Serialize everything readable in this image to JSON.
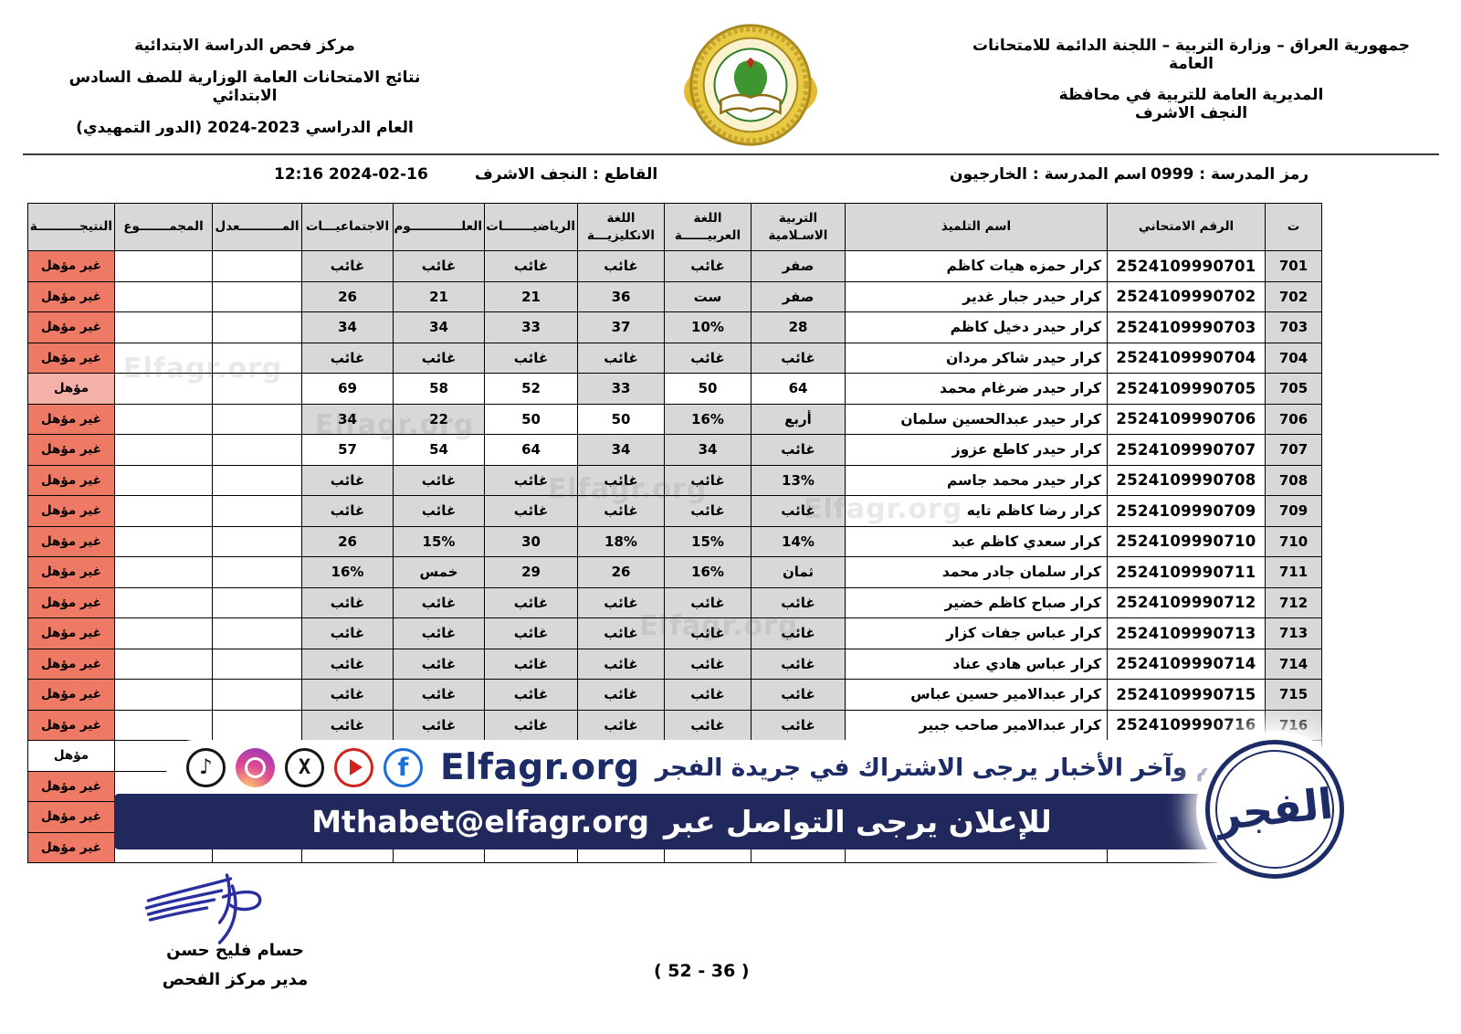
{
  "header": {
    "right": [
      "جمهورية العراق – وزارة التربية – اللجنة الدائمة للامتحانات العامة",
      "المديرية العامة للتربية في محافظة",
      "النجف الاشرف"
    ],
    "left": [
      "مركز فحص الدراسة الابتدائية",
      "نتائج الامتحانات العامة الوزارية للصف السادس الابتدائي",
      "العام الدراسي  2023-2024 (الدور التمهيدي)"
    ],
    "emblem": "ministry-of-education-iraq-emblem"
  },
  "info_bar": {
    "school_code": "رمز المدرسة : 0999",
    "school_name": "اسم المدرسة : الخارجيون",
    "sector": "القاطع : النجف الاشرف",
    "datetime": "12:16 2024-02-16"
  },
  "table": {
    "columns": [
      "ت",
      "الرقم الامتحاني",
      "اسم التلميذ",
      "التربية الاسـلامية",
      "اللغة العربيــــــة",
      "اللغة الانكليزيـــة",
      "الرياضيـــــــات",
      "العلــــــــــــوم",
      "الاجتماعيـــات",
      "المــــــــــعدل",
      "المجمـــــــوع",
      "النتيجــــــــــة"
    ],
    "rows": [
      {
        "no": "701",
        "exam_no": "2524109990701",
        "name": "كرار حمزه هيات كاظم",
        "islamic": "صفر",
        "arabic": "غائب",
        "english": "غائب",
        "math": "غائب",
        "science": "غائب",
        "social": "غائب",
        "average": "",
        "total": "",
        "result": "غير مؤهل",
        "result_style": "fail"
      },
      {
        "no": "702",
        "exam_no": "2524109990702",
        "name": "كرار حيدر جبار غدير",
        "islamic": "صفر",
        "arabic": "ست",
        "english": "36",
        "math": "21",
        "science": "21",
        "social": "26",
        "average": "",
        "total": "",
        "result": "غير مؤهل",
        "result_style": "fail"
      },
      {
        "no": "703",
        "exam_no": "2524109990703",
        "name": "كرار حيدر دخيل كاظم",
        "islamic": "28",
        "arabic": "10%",
        "english": "37",
        "math": "33",
        "science": "34",
        "social": "34",
        "average": "",
        "total": "",
        "result": "غير مؤهل",
        "result_style": "fail"
      },
      {
        "no": "704",
        "exam_no": "2524109990704",
        "name": "كرار حيدر شاكر مردان",
        "islamic": "غائب",
        "arabic": "غائب",
        "english": "غائب",
        "math": "غائب",
        "science": "غائب",
        "social": "غائب",
        "average": "",
        "total": "",
        "result": "غير مؤهل",
        "result_style": "fail"
      },
      {
        "no": "705",
        "exam_no": "2524109990705",
        "name": "كرار حيدر ضرغام محمد",
        "islamic": "64",
        "arabic": "50",
        "english": "33",
        "math": "52",
        "science": "58",
        "social": "69",
        "average": "",
        "total": "",
        "result": "مؤهل",
        "result_style": "pass-light"
      },
      {
        "no": "706",
        "exam_no": "2524109990706",
        "name": "كرار حيدر عبدالحسين سلمان",
        "islamic": "أربع",
        "arabic": "16%",
        "english": "50",
        "math": "50",
        "science": "22",
        "social": "34",
        "average": "",
        "total": "",
        "result": "غير مؤهل",
        "result_style": "fail"
      },
      {
        "no": "707",
        "exam_no": "2524109990707",
        "name": "كرار حيدر كاطع عزوز",
        "islamic": "غائب",
        "arabic": "34",
        "english": "34",
        "math": "64",
        "science": "54",
        "social": "57",
        "average": "",
        "total": "",
        "result": "غير مؤهل",
        "result_style": "fail"
      },
      {
        "no": "708",
        "exam_no": "2524109990708",
        "name": "كرار حيدر محمد جاسم",
        "islamic": "13%",
        "arabic": "غائب",
        "english": "غائب",
        "math": "غائب",
        "science": "غائب",
        "social": "غائب",
        "average": "",
        "total": "",
        "result": "غير مؤهل",
        "result_style": "fail"
      },
      {
        "no": "709",
        "exam_no": "2524109990709",
        "name": "كرار رضا كاظم تايه",
        "islamic": "غائب",
        "arabic": "غائب",
        "english": "غائب",
        "math": "غائب",
        "science": "غائب",
        "social": "غائب",
        "average": "",
        "total": "",
        "result": "غير مؤهل",
        "result_style": "fail"
      },
      {
        "no": "710",
        "exam_no": "2524109990710",
        "name": "كرار سعدي كاظم عبد",
        "islamic": "14%",
        "arabic": "15%",
        "english": "18%",
        "math": "30",
        "science": "15%",
        "social": "26",
        "average": "",
        "total": "",
        "result": "غير مؤهل",
        "result_style": "fail"
      },
      {
        "no": "711",
        "exam_no": "2524109990711",
        "name": "كرار سلمان جادر محمد",
        "islamic": "ثمان",
        "arabic": "16%",
        "english": "26",
        "math": "29",
        "science": "خمس",
        "social": "16%",
        "average": "",
        "total": "",
        "result": "غير مؤهل",
        "result_style": "fail"
      },
      {
        "no": "712",
        "exam_no": "2524109990712",
        "name": "كرار صباح كاظم خضير",
        "islamic": "غائب",
        "arabic": "غائب",
        "english": "غائب",
        "math": "غائب",
        "science": "غائب",
        "social": "غائب",
        "average": "",
        "total": "",
        "result": "غير مؤهل",
        "result_style": "fail"
      },
      {
        "no": "713",
        "exam_no": "2524109990713",
        "name": "كرار عباس جفات كزار",
        "islamic": "غائب",
        "arabic": "غائب",
        "english": "غائب",
        "math": "غائب",
        "science": "غائب",
        "social": "غائب",
        "average": "",
        "total": "",
        "result": "غير مؤهل",
        "result_style": "fail"
      },
      {
        "no": "714",
        "exam_no": "2524109990714",
        "name": "كرار عباس هادي عناد",
        "islamic": "غائب",
        "arabic": "غائب",
        "english": "غائب",
        "math": "غائب",
        "science": "غائب",
        "social": "غائب",
        "average": "",
        "total": "",
        "result": "غير مؤهل",
        "result_style": "fail"
      },
      {
        "no": "715",
        "exam_no": "2524109990715",
        "name": "كرار عبدالامير حسين عباس",
        "islamic": "غائب",
        "arabic": "غائب",
        "english": "غائب",
        "math": "غائب",
        "science": "غائب",
        "social": "غائب",
        "average": "",
        "total": "",
        "result": "غير مؤهل",
        "result_style": "fail"
      },
      {
        "no": "716",
        "exam_no": "2524109990716",
        "name": "كرار عبدالامير صاحب جبير",
        "islamic": "غائب",
        "arabic": "غائب",
        "english": "غائب",
        "math": "غائب",
        "science": "غائب",
        "social": "غائب",
        "average": "",
        "total": "",
        "result": "غير مؤهل",
        "result_style": "fail"
      },
      {
        "no": "",
        "exam_no": "",
        "name": "",
        "islamic": "",
        "arabic": "",
        "english": "",
        "math": "",
        "science": "",
        "social": "",
        "average": "",
        "total": "",
        "result": "مؤهل",
        "result_style": "pass-plain"
      },
      {
        "no": "",
        "exam_no": "",
        "name": "",
        "islamic": "",
        "arabic": "",
        "english": "",
        "math": "",
        "science": "",
        "social": "",
        "average": "",
        "total": "",
        "result": "غير مؤهل",
        "result_style": "fail"
      },
      {
        "no": "",
        "exam_no": "",
        "name": "",
        "islamic": "",
        "arabic": "",
        "english": "",
        "math": "",
        "science": "",
        "social": "",
        "average": "",
        "total": "",
        "result": "غير مؤهل",
        "result_style": "fail"
      },
      {
        "no": "",
        "exam_no": "",
        "name": "",
        "islamic": "",
        "arabic": "",
        "english": "",
        "math": "",
        "science": "",
        "social": "",
        "average": "",
        "total": "",
        "result": "غير مؤهل",
        "result_style": "fail"
      }
    ]
  },
  "banner": {
    "site": "Elfagr.org",
    "subscribe_text": "لمتابعة أهم وآخر الأخبار يرجى الاشتراك في جريدة الفجر",
    "contact_text": "للإعلان يرجى التواصل عبر",
    "email": "Mthabet@elfagr.org",
    "logo_text": "الفجر",
    "icons": [
      "tiktok-icon",
      "instagram-icon",
      "x-icon",
      "youtube-icon",
      "facebook-icon"
    ]
  },
  "footer": {
    "signer_name": "حسام فليح حسن",
    "signer_title": "مدير مركز الفحص",
    "page": "( 52 - 36 )"
  },
  "watermark": "Elfagr.org",
  "colors": {
    "fail_bg": "#ee7a66",
    "pass_light_bg": "#f5b2a9",
    "cell_grey": "#d8d8d8",
    "banner_navy": "#20285c",
    "brand_navy": "#1d2b66"
  }
}
